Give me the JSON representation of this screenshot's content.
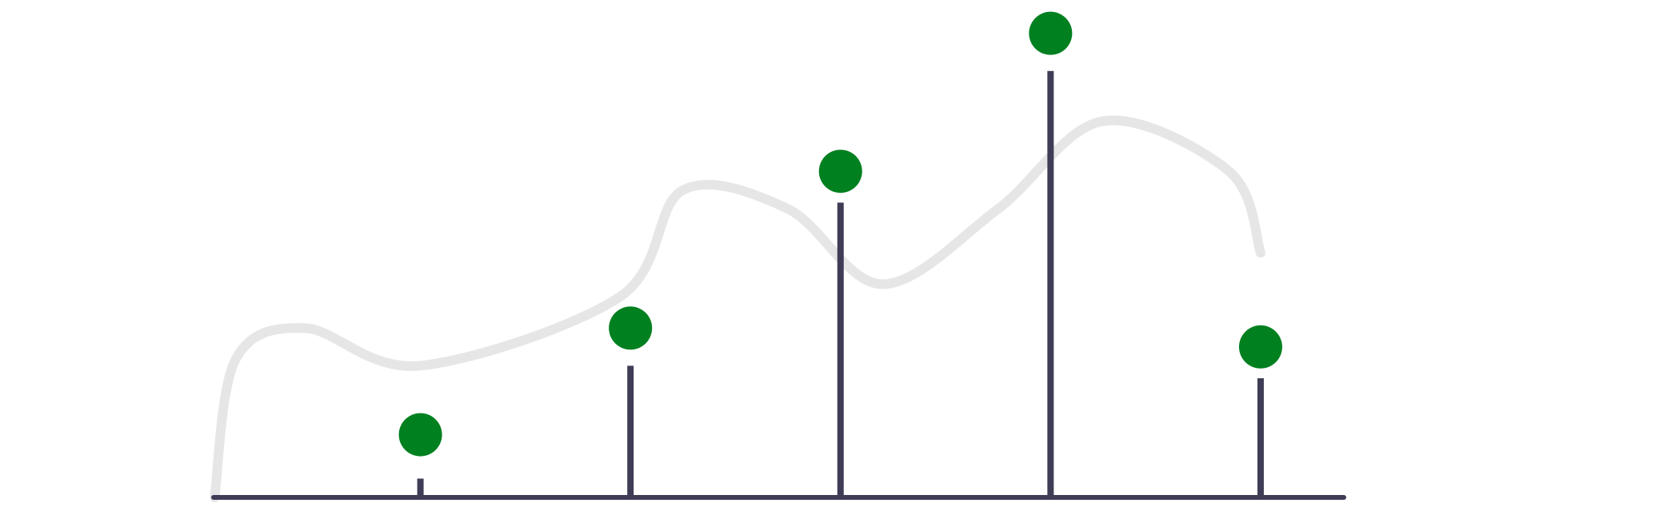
{
  "chart_data": {
    "type": "scatter",
    "style": "lollipop",
    "title": "",
    "xlabel": "",
    "ylabel": "",
    "grid": false,
    "legend": "none",
    "x": [
      1,
      2,
      3,
      4,
      5
    ],
    "stems": [
      0.3,
      2.1,
      4.7,
      6.8,
      1.9
    ],
    "values": [
      1.0,
      2.7,
      5.2,
      7.4,
      2.4
    ],
    "xlim": [
      0,
      5.4
    ],
    "ylim": [
      0,
      7.6
    ],
    "curve": {
      "x": [
        0.02,
        0.12,
        0.45,
        1.0,
        1.95,
        2.25,
        2.75,
        3.2,
        3.75,
        4.25,
        4.85,
        5.0
      ],
      "y": [
        0.0,
        2.2,
        2.7,
        2.1,
        3.2,
        4.9,
        4.6,
        3.4,
        4.6,
        6.0,
        5.2,
        3.9
      ]
    },
    "colors": {
      "point": "#00801f",
      "stem": "#3f3d56",
      "axis": "#3f3d56",
      "curve": "#e6e6e6",
      "background": "#ffffff"
    }
  }
}
